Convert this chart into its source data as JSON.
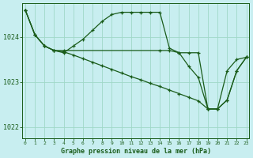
{
  "background_color": "#c8eef0",
  "grid_color": "#a0d8c8",
  "line_color": "#1a5c1a",
  "xlabel": "Graphe pression niveau de la mer (hPa)",
  "xlabel_color": "#1a5c1a",
  "tick_color": "#1a5c1a",
  "ylim": [
    1021.75,
    1024.75
  ],
  "yticks": [
    1022,
    1023,
    1024
  ],
  "xlim": [
    -0.3,
    23.3
  ],
  "xticks": [
    0,
    1,
    2,
    3,
    4,
    5,
    6,
    7,
    8,
    9,
    10,
    11,
    12,
    13,
    14,
    15,
    16,
    17,
    18,
    19,
    20,
    21,
    22,
    23
  ],
  "series1_x": [
    0,
    1,
    2,
    3,
    4,
    14,
    15,
    16,
    17,
    18,
    19,
    20,
    21,
    22,
    23
  ],
  "series1_y": [
    1024.6,
    1024.05,
    1023.8,
    1023.7,
    1023.7,
    1023.7,
    1023.7,
    1023.65,
    1023.65,
    1023.65,
    1022.4,
    1022.4,
    1023.25,
    1023.5,
    1023.55
  ],
  "series2_x": [
    0,
    1,
    2,
    3,
    4,
    5,
    6,
    7,
    8,
    9,
    10,
    11,
    12,
    13,
    14,
    15,
    16,
    17,
    18,
    19,
    20,
    21,
    22,
    23
  ],
  "series2_y": [
    1024.6,
    1024.05,
    1023.8,
    1023.7,
    1023.65,
    1023.8,
    1023.95,
    1024.15,
    1024.35,
    1024.5,
    1024.55,
    1024.55,
    1024.55,
    1024.55,
    1024.55,
    1023.75,
    1023.65,
    1023.35,
    1023.1,
    1022.4,
    1022.4,
    1022.6,
    1023.25,
    1023.55
  ],
  "series3_x": [
    0,
    1,
    2,
    3,
    4,
    5,
    6,
    7,
    8,
    9,
    10,
    11,
    12,
    13,
    14,
    15,
    16,
    17,
    18,
    19,
    20,
    21,
    22,
    23
  ],
  "series3_y": [
    1024.6,
    1024.05,
    1023.8,
    1023.7,
    1023.67,
    1023.6,
    1023.52,
    1023.44,
    1023.36,
    1023.28,
    1023.2,
    1023.12,
    1023.05,
    1022.97,
    1022.9,
    1022.82,
    1022.74,
    1022.66,
    1022.58,
    1022.4,
    1022.4,
    1022.6,
    1023.25,
    1023.55
  ]
}
